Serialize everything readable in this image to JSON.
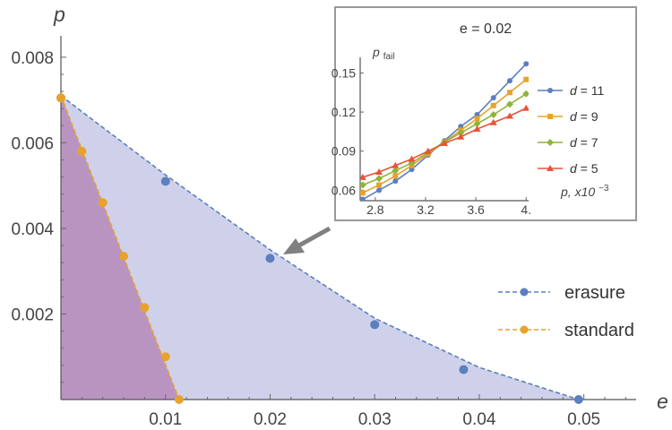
{
  "chart_data": [
    {
      "type": "area",
      "xlabel": "e",
      "ylabel": "p",
      "xlim": [
        0,
        0.055
      ],
      "ylim": [
        0,
        0.0085
      ],
      "x_ticks": [
        {
          "value": 0.01,
          "label": "0.01"
        },
        {
          "value": 0.02,
          "label": "0.02"
        },
        {
          "value": 0.03,
          "label": "0.03"
        },
        {
          "value": 0.04,
          "label": "0.04"
        },
        {
          "value": 0.05,
          "label": "0.05"
        }
      ],
      "y_ticks": [
        {
          "value": 0.002,
          "label": "0.002"
        },
        {
          "value": 0.004,
          "label": "0.004"
        },
        {
          "value": 0.006,
          "label": "0.006"
        },
        {
          "value": 0.008,
          "label": "0.008"
        }
      ],
      "legend_position": "right",
      "series": [
        {
          "name": "erasure",
          "color": "#5b7fbf",
          "fill": "#c7c9e6",
          "points": [
            [
              0,
              0.00705
            ],
            [
              0.01,
              0.0051
            ],
            [
              0.02,
              0.0033
            ],
            [
              0.03,
              0.00175
            ],
            [
              0.0385,
              0.0007
            ],
            [
              0.0495,
              0
            ]
          ],
          "fit": [
            [
              0,
              0.0071
            ],
            [
              0.01,
              0.00525
            ],
            [
              0.02,
              0.0035
            ],
            [
              0.03,
              0.0019
            ],
            [
              0.04,
              0.00075
            ],
            [
              0.0495,
              0
            ]
          ]
        },
        {
          "name": "standard",
          "color": "#e8a22b",
          "fill": "#b68aba",
          "points": [
            [
              0,
              0.00705
            ],
            [
              0.002,
              0.0058
            ],
            [
              0.004,
              0.0046
            ],
            [
              0.006,
              0.00335
            ],
            [
              0.008,
              0.00215
            ],
            [
              0.01,
              0.001
            ],
            [
              0.0113,
              0
            ]
          ],
          "fit": [
            [
              0,
              0.0071
            ],
            [
              0.0113,
              0
            ]
          ]
        }
      ]
    },
    {
      "type": "line",
      "title": "e = 0.02",
      "xlabel": "p, x10",
      "xlabel_exp": "−3",
      "ylabel": "p",
      "ylabel_sub": "fail",
      "xlim": [
        2.68,
        4.02
      ],
      "ylim": [
        0.052,
        0.162
      ],
      "x_ticks": [
        {
          "value": 2.8,
          "label": "2.8"
        },
        {
          "value": 3.2,
          "label": "3.2"
        },
        {
          "value": 3.6,
          "label": "3.6"
        },
        {
          "value": 4.0,
          "label": "4."
        }
      ],
      "y_ticks": [
        {
          "value": 0.06,
          "label": "0.06"
        },
        {
          "value": 0.09,
          "label": "0.09"
        },
        {
          "value": 0.12,
          "label": "0.12"
        },
        {
          "value": 0.15,
          "label": "0.15"
        }
      ],
      "x": [
        2.7,
        2.83,
        2.96,
        3.09,
        3.22,
        3.35,
        3.48,
        3.61,
        3.74,
        3.87,
        4.0
      ],
      "series": [
        {
          "name": "d = 11",
          "color": "#5b7fbf",
          "marker": "circle",
          "values": [
            0.053,
            0.06,
            0.067,
            0.076,
            0.087,
            0.098,
            0.109,
            0.118,
            0.131,
            0.144,
            0.157
          ]
        },
        {
          "name": "d = 9",
          "color": "#e8a22b",
          "marker": "square",
          "values": [
            0.058,
            0.064,
            0.071,
            0.079,
            0.088,
            0.097,
            0.106,
            0.115,
            0.125,
            0.135,
            0.145
          ]
        },
        {
          "name": "d = 7",
          "color": "#8fb43a",
          "marker": "diamond",
          "values": [
            0.064,
            0.069,
            0.075,
            0.081,
            0.089,
            0.097,
            0.104,
            0.111,
            0.118,
            0.126,
            0.134
          ]
        },
        {
          "name": "d = 5",
          "color": "#e8533a",
          "marker": "triangle",
          "values": [
            0.07,
            0.074,
            0.079,
            0.084,
            0.09,
            0.096,
            0.101,
            0.107,
            0.112,
            0.117,
            0.123
          ]
        }
      ]
    }
  ]
}
